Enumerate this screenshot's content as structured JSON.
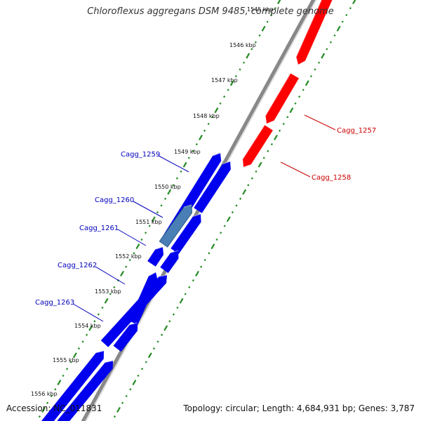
{
  "title": "Chloroflexus aggregans DSM 9485, complete genome",
  "footer": {
    "accession": "Accession: NC_011831",
    "topology": "Topology: circular; Length: 4,684,931 bp; Genes: 3,787"
  },
  "colors": {
    "forward_gene": "#ff0000",
    "reverse_gene": "#0000ee",
    "highlighted_gene": "#4a7fb5",
    "forward_label": "#cc0000",
    "reverse_label": "#0000bb",
    "backbone": "#888888",
    "tick": "#228b22"
  },
  "ticks": [
    "1545 kbp",
    "1546 kbp",
    "1547 kbp",
    "1548 kbp",
    "1549 kbp",
    "1550 kbp",
    "1551 kbp",
    "1552 kbp",
    "1553 kbp",
    "1554 kbp",
    "1555 kbp",
    "1556 kbp"
  ],
  "genes": [
    {
      "label": "Cagg_1257",
      "strand": "forward",
      "highlighted": false
    },
    {
      "label": "Cagg_1258",
      "strand": "forward",
      "highlighted": false
    },
    {
      "label": "Cagg_1259",
      "strand": "reverse",
      "highlighted": false
    },
    {
      "label": "Cagg_1260",
      "strand": "reverse",
      "highlighted": true
    },
    {
      "label": "Cagg_1261",
      "strand": "reverse",
      "highlighted": false
    },
    {
      "label": "Cagg_1262",
      "strand": "reverse",
      "highlighted": false
    },
    {
      "label": "Cagg_1263",
      "strand": "reverse",
      "highlighted": false
    }
  ]
}
